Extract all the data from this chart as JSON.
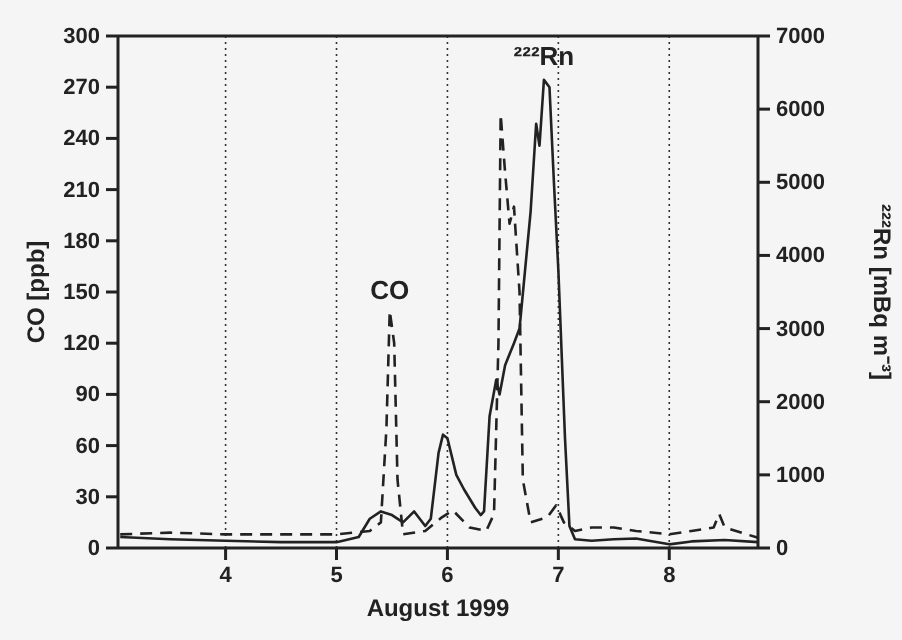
{
  "chart_data": {
    "type": "line",
    "xlabel": "August 1999",
    "ylabel": "CO [ppb]",
    "y2label": "²²²Rn [mBq m⁻³]",
    "xlim": [
      3.03,
      8.8
    ],
    "xticks": [
      4,
      5,
      6,
      7,
      8
    ],
    "ylim": [
      0,
      300
    ],
    "yticks": [
      0,
      30,
      60,
      90,
      120,
      150,
      180,
      210,
      240,
      270,
      300
    ],
    "y2lim": [
      0,
      7000
    ],
    "y2ticks": [
      0,
      1000,
      2000,
      3000,
      4000,
      5000,
      6000,
      7000
    ],
    "grid": "x",
    "marker": "none",
    "annotations": [
      {
        "text": "CO",
        "x": 5.48,
        "y": 139
      },
      {
        "text": "²²²Rn",
        "x": 6.87,
        "y": 276
      }
    ],
    "series": [
      {
        "color": "#222222",
        "line_style": "dashed",
        "x": [
          3.05,
          3.5,
          4,
          4.5,
          5,
          5.3,
          5.4,
          5.45,
          5.48,
          5.52,
          5.55,
          5.6,
          5.8,
          5.95,
          6.05,
          6.2,
          6.35,
          6.42,
          6.46,
          6.48,
          6.52,
          6.56,
          6.6,
          6.65,
          6.68,
          6.75,
          6.9,
          6.98,
          7.05,
          7.15,
          7.3,
          7.5,
          7.7,
          8,
          8.2,
          8.4,
          8.45,
          8.5,
          8.7,
          8.8
        ],
        "values": [
          8,
          9,
          8,
          8,
          8,
          10,
          15,
          70,
          139,
          120,
          40,
          8,
          10,
          18,
          22,
          12,
          10,
          20,
          120,
          254,
          220,
          190,
          200,
          150,
          40,
          15,
          18,
          25,
          15,
          10,
          12,
          12,
          10,
          8,
          10,
          12,
          20,
          12,
          8,
          6
        ]
      },
      {
        "color": "#222222",
        "line_style": "solid",
        "axis": "y2",
        "x": [
          3.05,
          3.5,
          4,
          4.5,
          5,
          5.2,
          5.3,
          5.4,
          5.5,
          5.6,
          5.7,
          5.8,
          5.85,
          5.92,
          5.96,
          6.0,
          6.08,
          6.15,
          6.25,
          6.3,
          6.33,
          6.38,
          6.44,
          6.47,
          6.52,
          6.6,
          6.65,
          6.7,
          6.75,
          6.8,
          6.83,
          6.87,
          6.92,
          6.96,
          7.0,
          7.06,
          7.1,
          7.15,
          7.3,
          7.5,
          7.7,
          8,
          8.2,
          8.5,
          8.8
        ],
        "values": [
          150,
          120,
          100,
          80,
          80,
          150,
          400,
          500,
          450,
          350,
          500,
          300,
          400,
          1300,
          1550,
          1500,
          1000,
          800,
          550,
          450,
          500,
          1800,
          2300,
          2100,
          2500,
          2800,
          3000,
          3800,
          4600,
          5800,
          5500,
          6400,
          6300,
          5000,
          3800,
          1500,
          300,
          120,
          100,
          120,
          130,
          50,
          90,
          110,
          80
        ]
      }
    ]
  }
}
